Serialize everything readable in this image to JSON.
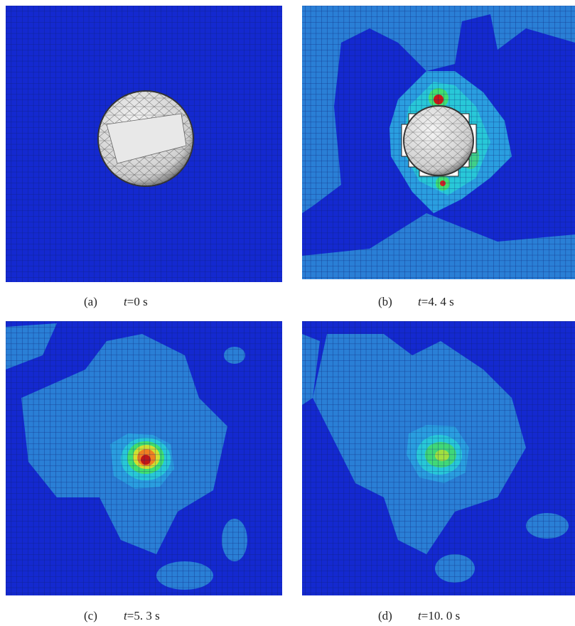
{
  "panels": [
    {
      "label": "(a)",
      "variable": "t",
      "rest": "=0 s"
    },
    {
      "label": "(b)",
      "variable": "t",
      "rest": "=4. 4 s"
    },
    {
      "label": "(c)",
      "variable": "t",
      "rest": "=5. 3 s"
    },
    {
      "label": "(d)",
      "variable": "t",
      "rest": "=10. 0 s"
    }
  ]
}
